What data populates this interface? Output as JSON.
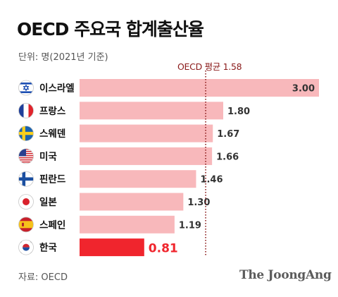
{
  "header": {
    "title": "OECD 주요국 합계출산율",
    "unit": "단위: 명(2021년 기준)",
    "avg_label": "OECD 평균 1.58"
  },
  "footer": {
    "source": "자료: OECD",
    "brand": "The JoongAng"
  },
  "colors": {
    "bar": "#f8b8bb",
    "highlight": "#f0252d",
    "avg_line": "#8a1a1a"
  },
  "chart_data": {
    "type": "bar",
    "orientation": "horizontal",
    "title": "OECD 주요국 합계출산율",
    "categories": [
      "이스라엘",
      "프랑스",
      "스웨덴",
      "미국",
      "핀란드",
      "일본",
      "스페인",
      "한국"
    ],
    "flags": [
      "israel-flag-icon",
      "france-flag-icon",
      "sweden-flag-icon",
      "usa-flag-icon",
      "finland-flag-icon",
      "japan-flag-icon",
      "spain-flag-icon",
      "korea-flag-icon"
    ],
    "values": [
      3.0,
      1.8,
      1.67,
      1.66,
      1.46,
      1.3,
      1.19,
      0.81
    ],
    "value_labels": [
      "3.00",
      "1.80",
      "1.67",
      "1.66",
      "1.46",
      "1.30",
      "1.19",
      "0.81"
    ],
    "highlight": "한국",
    "reference_line": {
      "label": "OECD 평균 1.58",
      "value": 1.58
    },
    "xlim": [
      0,
      3.0
    ],
    "grid": false
  }
}
